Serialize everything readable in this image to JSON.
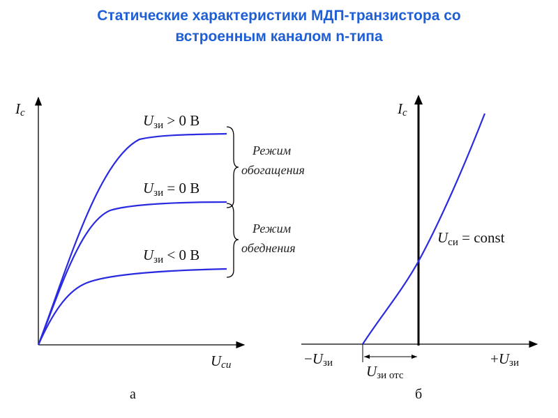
{
  "title": {
    "line1": "Статические характеристики МДП-транзистора со",
    "line2": "встроенным каналом n-типа"
  },
  "left_graph": {
    "y_axis": {
      "symbol": "I",
      "sub": "с"
    },
    "x_axis": {
      "symbol": "U",
      "sub": "си"
    },
    "curves": [
      {
        "symbol": "U",
        "sub": "зи",
        "relation": " > 0 В"
      },
      {
        "symbol": "U",
        "sub": "зи",
        "relation": " = 0 В"
      },
      {
        "symbol": "U",
        "sub": "зи",
        "relation": " < 0 В"
      }
    ],
    "modes": [
      {
        "line1": "Режим",
        "line2": "обогащения"
      },
      {
        "line1": "Режим",
        "line2": "обеднения"
      }
    ],
    "caption": "а"
  },
  "right_graph": {
    "y_axis": {
      "symbol": "I",
      "sub": "с"
    },
    "x_neg": {
      "prefix": "−",
      "symbol": "U",
      "sub": "зи"
    },
    "x_pos": {
      "prefix": "+",
      "symbol": "U",
      "sub": "зи"
    },
    "cutoff": {
      "symbol": "U",
      "sub": "зи отс"
    },
    "curve_label": {
      "symbol": "U",
      "sub": "си",
      "relation": " = const"
    },
    "caption": "б"
  },
  "colors": {
    "title": "#1f5fd6",
    "curve": "#2a2ae0",
    "axis": "#000000"
  }
}
